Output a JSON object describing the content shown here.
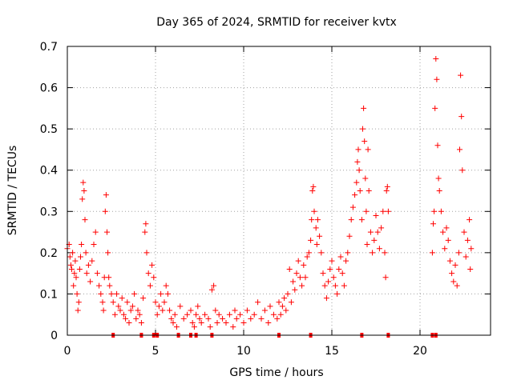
{
  "chart_data": {
    "type": "scatter",
    "title": "Day 365 of 2024, SRMTID for receiver kvtx",
    "xlabel": "GPS time / hours",
    "ylabel": "SRMTID / TECUs",
    "xlim": [
      0,
      24
    ],
    "ylim": [
      0,
      0.7
    ],
    "xticks": [
      0,
      5,
      10,
      15,
      20
    ],
    "xtick_labels": [
      "0",
      "5",
      "10",
      "15",
      "20"
    ],
    "yticks": [
      0,
      0.1,
      0.2,
      0.3,
      0.4,
      0.5,
      0.6,
      0.7
    ],
    "ytick_labels": [
      "0",
      "0.1",
      "0.2",
      "0.3",
      "0.4",
      "0.5",
      "0.6",
      "0.7"
    ],
    "grid": true,
    "marker": "+",
    "colors": {
      "series": "#ff0000",
      "axes": "#000000",
      "grid": "#a0a0a0",
      "background": "#ffffff"
    },
    "series": [
      {
        "name": "SRMTID",
        "points": [
          [
            0.0,
            0.21
          ],
          [
            0.1,
            0.22
          ],
          [
            0.15,
            0.19
          ],
          [
            0.2,
            0.17
          ],
          [
            0.25,
            0.16
          ],
          [
            0.3,
            0.2
          ],
          [
            0.35,
            0.12
          ],
          [
            0.4,
            0.15
          ],
          [
            0.45,
            0.18
          ],
          [
            0.5,
            0.14
          ],
          [
            0.55,
            0.1
          ],
          [
            0.6,
            0.06
          ],
          [
            0.65,
            0.08
          ],
          [
            0.7,
            0.16
          ],
          [
            0.75,
            0.19
          ],
          [
            0.8,
            0.22
          ],
          [
            0.85,
            0.33
          ],
          [
            0.9,
            0.37
          ],
          [
            0.95,
            0.35
          ],
          [
            1.0,
            0.28
          ],
          [
            1.05,
            0.2
          ],
          [
            1.1,
            0.15
          ],
          [
            1.2,
            0.17
          ],
          [
            1.3,
            0.13
          ],
          [
            1.4,
            0.18
          ],
          [
            1.5,
            0.22
          ],
          [
            1.6,
            0.25
          ],
          [
            1.7,
            0.15
          ],
          [
            1.8,
            0.12
          ],
          [
            1.9,
            0.1
          ],
          [
            2.0,
            0.08
          ],
          [
            2.05,
            0.06
          ],
          [
            2.1,
            0.14
          ],
          [
            2.15,
            0.3
          ],
          [
            2.2,
            0.34
          ],
          [
            2.25,
            0.25
          ],
          [
            2.3,
            0.2
          ],
          [
            2.35,
            0.14
          ],
          [
            2.4,
            0.12
          ],
          [
            2.5,
            0.1
          ],
          [
            2.6,
            0.08
          ],
          [
            2.7,
            0.05
          ],
          [
            2.8,
            0.1
          ],
          [
            2.9,
            0.07
          ],
          [
            3.0,
            0.06
          ],
          [
            3.1,
            0.09
          ],
          [
            3.2,
            0.05
          ],
          [
            3.3,
            0.04
          ],
          [
            3.4,
            0.08
          ],
          [
            3.5,
            0.03
          ],
          [
            3.6,
            0.06
          ],
          [
            3.7,
            0.07
          ],
          [
            3.8,
            0.1
          ],
          [
            3.9,
            0.04
          ],
          [
            4.0,
            0.06
          ],
          [
            4.1,
            0.05
          ],
          [
            4.2,
            0.03
          ],
          [
            4.3,
            0.09
          ],
          [
            4.4,
            0.25
          ],
          [
            4.45,
            0.27
          ],
          [
            4.5,
            0.2
          ],
          [
            4.6,
            0.15
          ],
          [
            4.7,
            0.12
          ],
          [
            4.8,
            0.17
          ],
          [
            4.9,
            0.14
          ],
          [
            5.0,
            0.08
          ],
          [
            5.1,
            0.05
          ],
          [
            5.2,
            0.07
          ],
          [
            5.3,
            0.1
          ],
          [
            5.4,
            0.06
          ],
          [
            5.5,
            0.08
          ],
          [
            5.6,
            0.12
          ],
          [
            5.7,
            0.1
          ],
          [
            5.8,
            0.06
          ],
          [
            5.9,
            0.04
          ],
          [
            6.0,
            0.03
          ],
          [
            6.1,
            0.05
          ],
          [
            6.2,
            0.02
          ],
          [
            6.4,
            0.07
          ],
          [
            6.6,
            0.04
          ],
          [
            6.8,
            0.05
          ],
          [
            7.0,
            0.06
          ],
          [
            7.1,
            0.03
          ],
          [
            7.2,
            0.02
          ],
          [
            7.3,
            0.05
          ],
          [
            7.4,
            0.07
          ],
          [
            7.5,
            0.04
          ],
          [
            7.6,
            0.03
          ],
          [
            7.8,
            0.05
          ],
          [
            8.0,
            0.04
          ],
          [
            8.1,
            0.02
          ],
          [
            8.2,
            0.11
          ],
          [
            8.3,
            0.12
          ],
          [
            8.4,
            0.06
          ],
          [
            8.5,
            0.03
          ],
          [
            8.6,
            0.05
          ],
          [
            8.8,
            0.04
          ],
          [
            9.0,
            0.03
          ],
          [
            9.2,
            0.05
          ],
          [
            9.4,
            0.02
          ],
          [
            9.5,
            0.06
          ],
          [
            9.6,
            0.04
          ],
          [
            9.8,
            0.05
          ],
          [
            10.0,
            0.03
          ],
          [
            10.2,
            0.06
          ],
          [
            10.4,
            0.04
          ],
          [
            10.6,
            0.05
          ],
          [
            10.8,
            0.08
          ],
          [
            11.0,
            0.04
          ],
          [
            11.2,
            0.06
          ],
          [
            11.4,
            0.03
          ],
          [
            11.5,
            0.07
          ],
          [
            11.7,
            0.05
          ],
          [
            11.9,
            0.04
          ],
          [
            12.0,
            0.08
          ],
          [
            12.1,
            0.05
          ],
          [
            12.2,
            0.07
          ],
          [
            12.3,
            0.09
          ],
          [
            12.4,
            0.06
          ],
          [
            12.5,
            0.1
          ],
          [
            12.6,
            0.16
          ],
          [
            12.7,
            0.08
          ],
          [
            12.8,
            0.13
          ],
          [
            12.9,
            0.11
          ],
          [
            13.0,
            0.15
          ],
          [
            13.1,
            0.18
          ],
          [
            13.2,
            0.14
          ],
          [
            13.3,
            0.12
          ],
          [
            13.4,
            0.17
          ],
          [
            13.5,
            0.14
          ],
          [
            13.6,
            0.19
          ],
          [
            13.7,
            0.2
          ],
          [
            13.8,
            0.23
          ],
          [
            13.85,
            0.28
          ],
          [
            13.9,
            0.35
          ],
          [
            13.95,
            0.36
          ],
          [
            14.0,
            0.3
          ],
          [
            14.1,
            0.26
          ],
          [
            14.15,
            0.22
          ],
          [
            14.2,
            0.28
          ],
          [
            14.3,
            0.24
          ],
          [
            14.4,
            0.2
          ],
          [
            14.5,
            0.15
          ],
          [
            14.6,
            0.12
          ],
          [
            14.7,
            0.09
          ],
          [
            14.8,
            0.13
          ],
          [
            14.9,
            0.16
          ],
          [
            15.0,
            0.18
          ],
          [
            15.1,
            0.14
          ],
          [
            15.2,
            0.12
          ],
          [
            15.3,
            0.1
          ],
          [
            15.4,
            0.16
          ],
          [
            15.5,
            0.19
          ],
          [
            15.6,
            0.15
          ],
          [
            15.7,
            0.12
          ],
          [
            15.8,
            0.18
          ],
          [
            15.9,
            0.2
          ],
          [
            16.0,
            0.24
          ],
          [
            16.1,
            0.28
          ],
          [
            16.2,
            0.31
          ],
          [
            16.3,
            0.34
          ],
          [
            16.4,
            0.37
          ],
          [
            16.45,
            0.42
          ],
          [
            16.5,
            0.45
          ],
          [
            16.55,
            0.4
          ],
          [
            16.6,
            0.35
          ],
          [
            16.7,
            0.28
          ],
          [
            16.75,
            0.5
          ],
          [
            16.8,
            0.55
          ],
          [
            16.85,
            0.47
          ],
          [
            16.9,
            0.38
          ],
          [
            16.95,
            0.3
          ],
          [
            17.0,
            0.22
          ],
          [
            17.05,
            0.45
          ],
          [
            17.1,
            0.35
          ],
          [
            17.2,
            0.25
          ],
          [
            17.3,
            0.2
          ],
          [
            17.4,
            0.23
          ],
          [
            17.5,
            0.29
          ],
          [
            17.6,
            0.25
          ],
          [
            17.7,
            0.21
          ],
          [
            17.8,
            0.26
          ],
          [
            17.9,
            0.3
          ],
          [
            18.0,
            0.2
          ],
          [
            18.05,
            0.14
          ],
          [
            18.1,
            0.35
          ],
          [
            18.15,
            0.36
          ],
          [
            18.2,
            0.3
          ],
          [
            20.7,
            0.2
          ],
          [
            20.75,
            0.27
          ],
          [
            20.8,
            0.3
          ],
          [
            20.85,
            0.55
          ],
          [
            20.9,
            0.67
          ],
          [
            20.95,
            0.62
          ],
          [
            21.0,
            0.46
          ],
          [
            21.05,
            0.38
          ],
          [
            21.1,
            0.35
          ],
          [
            21.2,
            0.3
          ],
          [
            21.3,
            0.25
          ],
          [
            21.4,
            0.21
          ],
          [
            21.5,
            0.26
          ],
          [
            21.6,
            0.23
          ],
          [
            21.7,
            0.18
          ],
          [
            21.8,
            0.15
          ],
          [
            21.9,
            0.13
          ],
          [
            22.0,
            0.17
          ],
          [
            22.1,
            0.12
          ],
          [
            22.2,
            0.2
          ],
          [
            22.25,
            0.45
          ],
          [
            22.3,
            0.63
          ],
          [
            22.35,
            0.53
          ],
          [
            22.4,
            0.4
          ],
          [
            22.5,
            0.25
          ],
          [
            22.6,
            0.19
          ],
          [
            22.7,
            0.23
          ],
          [
            22.8,
            0.28
          ],
          [
            22.85,
            0.16
          ],
          [
            22.9,
            0.21
          ]
        ]
      }
    ],
    "baseline_markers_x": [
      2.6,
      4.2,
      4.9,
      5.1,
      6.3,
      7.0,
      7.3,
      8.2,
      12.0,
      13.8,
      16.7,
      18.2,
      20.7,
      20.9
    ]
  }
}
